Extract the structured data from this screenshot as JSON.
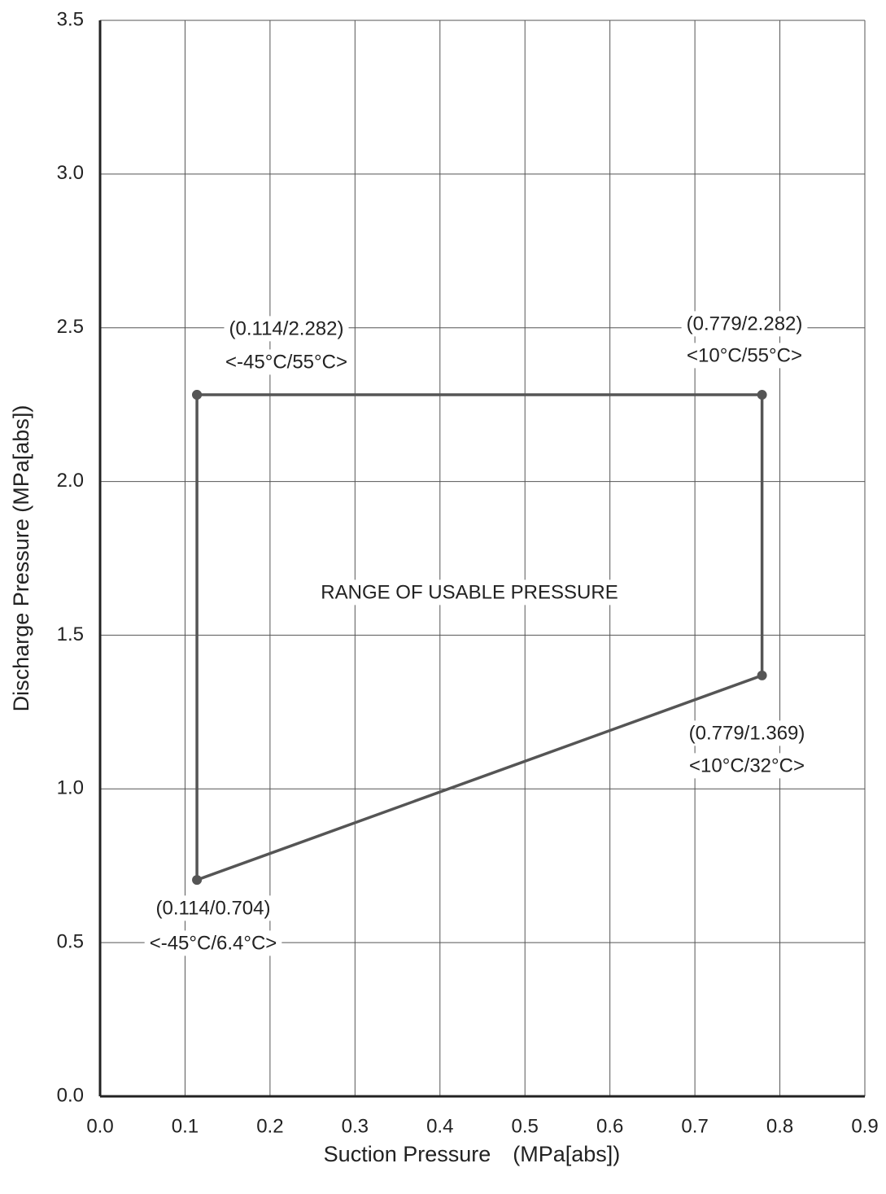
{
  "chart_data": {
    "type": "line",
    "x_label": "Suction Pressure　(MPa[abs])",
    "y_label": "Discharge Pressure (MPa[abs])",
    "x": [
      0.114,
      0.779,
      0.779,
      0.114,
      0.114
    ],
    "series": [
      {
        "color": "#555555",
        "values": [
          2.282,
          2.282,
          1.369,
          0.704,
          2.282
        ]
      }
    ],
    "xlim": [
      0,
      0.9
    ],
    "xticks": [
      {
        "value": 0,
        "label": "0.0"
      },
      0.1,
      0.2,
      0.3,
      0.4,
      0.5,
      0.6,
      0.7,
      0.8,
      0.9
    ],
    "ylim": [
      0,
      3.5
    ],
    "yticks": [
      {
        "value": 0,
        "label": "0.0"
      },
      0.5,
      {
        "value": 1,
        "label": "1.0"
      },
      1.5,
      {
        "value": 2,
        "label": "2.0"
      },
      2.5,
      {
        "value": 3,
        "label": "3.0"
      },
      3.5
    ],
    "grid": true,
    "annotations": [
      "(0.114/2.282)",
      "<-45°C/55°C>",
      "(0.779/2.282)",
      "<10°C/55°C>",
      "(0.779/1.369)",
      "<10°C/32°C>",
      "(0.114/0.704)",
      "<-45°C/6.4°C>",
      "RANGE OF USABLE PRESSURE"
    ]
  }
}
